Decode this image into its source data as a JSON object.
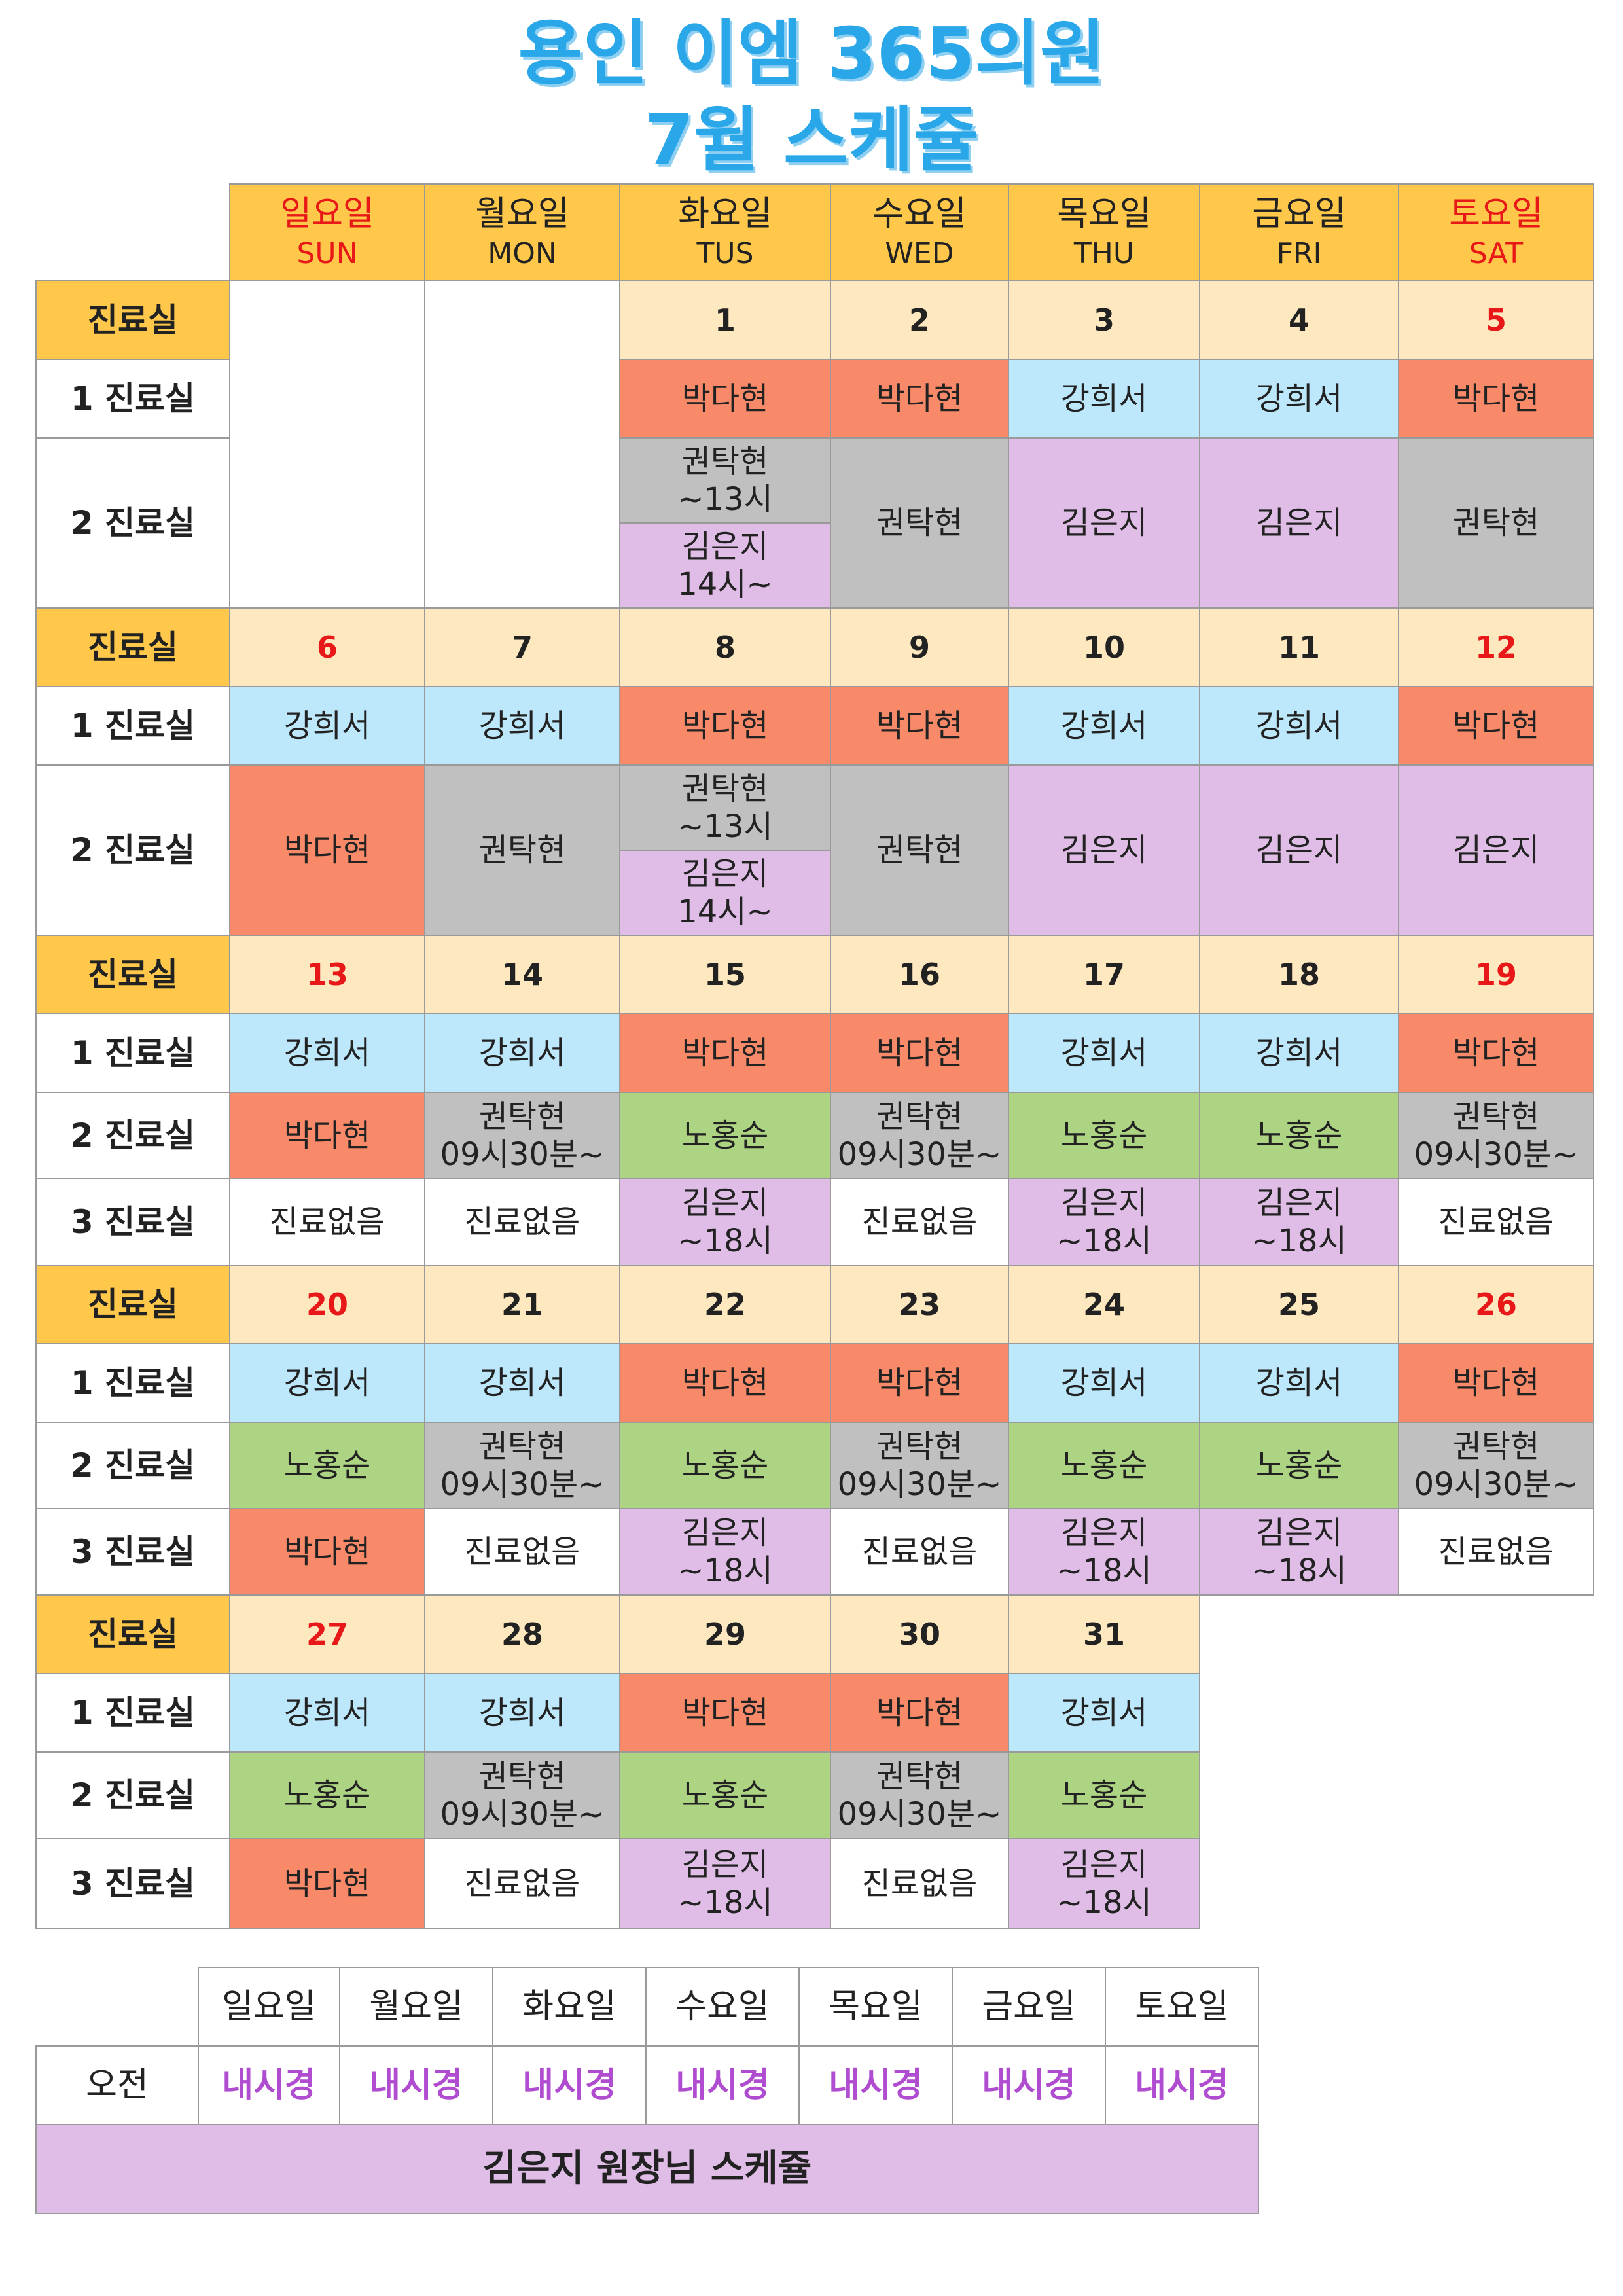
{
  "title": {
    "line1": "용인 이엠 365의원",
    "line2": "7월 스케쥴"
  },
  "header": {
    "days": [
      {
        "ko": "일요일",
        "en": "SUN"
      },
      {
        "ko": "월요일",
        "en": "MON"
      },
      {
        "ko": "화요일",
        "en": "TUS"
      },
      {
        "ko": "수요일",
        "en": "WED"
      },
      {
        "ko": "목요일",
        "en": "THU"
      },
      {
        "ko": "금요일",
        "en": "FRI"
      },
      {
        "ko": "토요일",
        "en": "SAT"
      }
    ]
  },
  "labels": {
    "clinic": "진료실",
    "room1": "1 진료실",
    "room2": "2 진료실",
    "room3": "3 진료실"
  },
  "colors": {
    "orange": "#f88a6a",
    "blue": "#bde8fb",
    "gray": "#c0c0c0",
    "purple": "#e0bde6",
    "green": "#add483",
    "yellow": "#ffc84a",
    "cream": "#fde8bf",
    "title": "#2aa7e8"
  },
  "weeks": [
    {
      "dates": [
        "",
        "",
        "1",
        "2",
        "3",
        "4",
        "5"
      ],
      "room1": [
        "",
        "",
        "박다현",
        "박다현",
        "강희서",
        "강희서",
        "박다현"
      ],
      "room2_split": {
        "top_line1": "권탁현",
        "top_line2": "~13시",
        "bottom_line1": "김은지",
        "bottom_line2": "14시~"
      },
      "room2": [
        "",
        "",
        "",
        "권탁현",
        "김은지",
        "김은지",
        "권탁현"
      ]
    },
    {
      "dates": [
        "6",
        "7",
        "8",
        "9",
        "10",
        "11",
        "12"
      ],
      "room1": [
        "강희서",
        "강희서",
        "박다현",
        "박다현",
        "강희서",
        "강희서",
        "박다현"
      ],
      "room2_split": {
        "top_line1": "권탁현",
        "top_line2": "~13시",
        "bottom_line1": "김은지",
        "bottom_line2": "14시~"
      },
      "room2": [
        "박다현",
        "권탁현",
        "",
        "권탁현",
        "김은지",
        "김은지",
        "김은지"
      ]
    },
    {
      "dates": [
        "13",
        "14",
        "15",
        "16",
        "17",
        "18",
        "19"
      ],
      "room1": [
        "강희서",
        "강희서",
        "박다현",
        "박다현",
        "강희서",
        "강희서",
        "박다현"
      ],
      "room2": [
        {
          "l1": "박다현",
          "l2": ""
        },
        {
          "l1": "권탁현",
          "l2": "09시30분~"
        },
        {
          "l1": "노홍순",
          "l2": ""
        },
        {
          "l1": "권탁현",
          "l2": "09시30분~"
        },
        {
          "l1": "노홍순",
          "l2": ""
        },
        {
          "l1": "노홍순",
          "l2": ""
        },
        {
          "l1": "권탁현",
          "l2": "09시30분~"
        }
      ],
      "room3": [
        {
          "l1": "진료없음",
          "l2": ""
        },
        {
          "l1": "진료없음",
          "l2": ""
        },
        {
          "l1": "김은지",
          "l2": "~18시"
        },
        {
          "l1": "진료없음",
          "l2": ""
        },
        {
          "l1": "김은지",
          "l2": "~18시"
        },
        {
          "l1": "김은지",
          "l2": "~18시"
        },
        {
          "l1": "진료없음",
          "l2": ""
        }
      ]
    },
    {
      "dates": [
        "20",
        "21",
        "22",
        "23",
        "24",
        "25",
        "26"
      ],
      "room1": [
        "강희서",
        "강희서",
        "박다현",
        "박다현",
        "강희서",
        "강희서",
        "박다현"
      ],
      "room2": [
        {
          "l1": "노홍순",
          "l2": ""
        },
        {
          "l1": "권탁현",
          "l2": "09시30분~"
        },
        {
          "l1": "노홍순",
          "l2": ""
        },
        {
          "l1": "권탁현",
          "l2": "09시30분~"
        },
        {
          "l1": "노홍순",
          "l2": ""
        },
        {
          "l1": "노홍순",
          "l2": ""
        },
        {
          "l1": "권탁현",
          "l2": "09시30분~"
        }
      ],
      "room3": [
        {
          "l1": "박다현",
          "l2": ""
        },
        {
          "l1": "진료없음",
          "l2": ""
        },
        {
          "l1": "김은지",
          "l2": "~18시"
        },
        {
          "l1": "진료없음",
          "l2": ""
        },
        {
          "l1": "김은지",
          "l2": "~18시"
        },
        {
          "l1": "김은지",
          "l2": "~18시"
        },
        {
          "l1": "진료없음",
          "l2": ""
        }
      ]
    },
    {
      "dates": [
        "27",
        "28",
        "29",
        "30",
        "31"
      ],
      "room1": [
        "강희서",
        "강희서",
        "박다현",
        "박다현",
        "강희서"
      ],
      "room2": [
        {
          "l1": "노홍순",
          "l2": ""
        },
        {
          "l1": "권탁현",
          "l2": "09시30분~"
        },
        {
          "l1": "노홍순",
          "l2": ""
        },
        {
          "l1": "권탁현",
          "l2": "09시30분~"
        },
        {
          "l1": "노홍순",
          "l2": ""
        }
      ],
      "room3": [
        {
          "l1": "박다현",
          "l2": ""
        },
        {
          "l1": "진료없음",
          "l2": ""
        },
        {
          "l1": "김은지",
          "l2": "~18시"
        },
        {
          "l1": "진료없음",
          "l2": ""
        },
        {
          "l1": "김은지",
          "l2": "~18시"
        }
      ]
    }
  ],
  "bottom": {
    "days": [
      "일요일",
      "월요일",
      "화요일",
      "수요일",
      "목요일",
      "금요일",
      "토요일"
    ],
    "morning_label": "오전",
    "morning": [
      "내시경",
      "내시경",
      "내시경",
      "내시경",
      "내시경",
      "내시경",
      "내시경"
    ],
    "banner": "김은지 원장님 스케쥴"
  }
}
